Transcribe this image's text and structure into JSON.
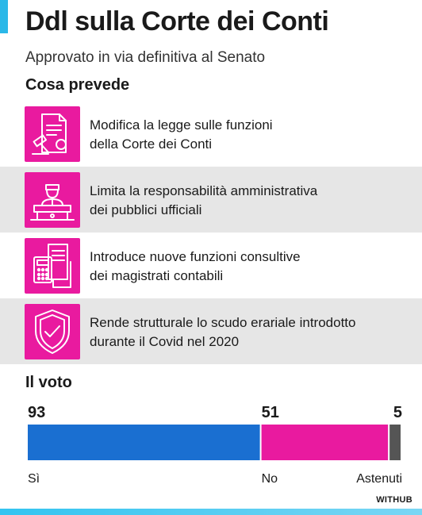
{
  "header": {
    "title": "Ddl sulla Corte dei Conti",
    "subtitle": "Approvato in via definitiva al Senato",
    "accent_color": "#2bb8e8"
  },
  "provisions": {
    "heading": "Cosa prevede",
    "icon_color": "#e91a9f",
    "items": [
      {
        "line1": "Modifica la legge sulle funzioni",
        "line2": "della Corte dei Conti",
        "icon": "law-document-gavel-icon"
      },
      {
        "line1": "Limita la responsabilità amministrativa",
        "line2": "dei pubblici ufficiali",
        "icon": "official-at-desk-icon"
      },
      {
        "line1": "Introduce nuove funzioni consultive",
        "line2": "dei magistrati contabili",
        "icon": "calculator-documents-icon"
      },
      {
        "line1": "Rende strutturale lo scudo erariale introdotto",
        "line2": "durante il Covid nel 2020",
        "icon": "shield-check-icon"
      }
    ]
  },
  "vote": {
    "heading": "Il voto"
  },
  "chart_data": {
    "type": "bar",
    "orientation": "horizontal-stacked",
    "title": "Il voto",
    "categories": [
      "Sì",
      "No",
      "Astenuti"
    ],
    "values": [
      93,
      51,
      5
    ],
    "colors": [
      "#1a6fd1",
      "#e91a9f",
      "#555555"
    ]
  },
  "footer": {
    "brand": "WITHUB"
  }
}
